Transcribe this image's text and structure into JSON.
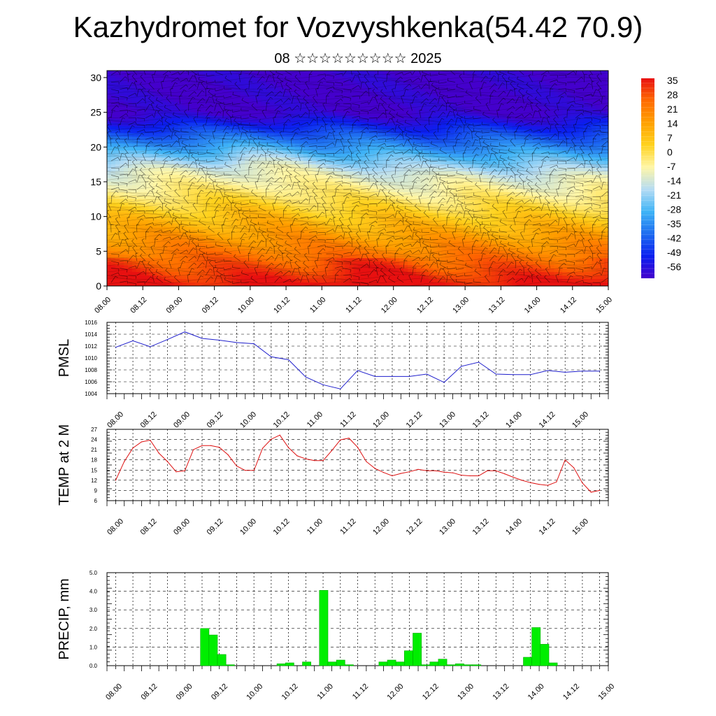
{
  "title": "Kazhydromet for Vozvyshkenka(54.42 70.9)",
  "subtitle": "08 ☆☆☆☆☆☆☆☆☆ 2025",
  "time_labels": [
    "08.00",
    "08.12",
    "09.00",
    "09.12",
    "10.00",
    "10.12",
    "11.00",
    "11.12",
    "12.00",
    "12.12",
    "13.00",
    "13.12",
    "14.00",
    "14.12",
    "15.00"
  ],
  "chart_data": [
    {
      "type": "heatmap",
      "name": "cross-section",
      "x": [
        "08.00",
        "08.12",
        "09.00",
        "09.12",
        "10.00",
        "10.12",
        "11.00",
        "11.12",
        "12.00",
        "12.12",
        "13.00",
        "13.12",
        "14.00",
        "14.12",
        "15.00"
      ],
      "y_ticks": [
        0,
        5,
        10,
        15,
        20,
        25,
        30
      ],
      "ylim": [
        0,
        31
      ],
      "colorbar_labels": [
        35,
        28,
        21,
        14,
        7,
        0,
        -7,
        -14,
        -21,
        -28,
        -35,
        -42,
        -49,
        -56
      ],
      "colorbar_range": [
        -63,
        42
      ],
      "freezing_level_approx": [
        16.2,
        16.6,
        16.8,
        16.8,
        17.5,
        17.3,
        16.5,
        16.2,
        16.0,
        15.5,
        15.8,
        15.6,
        15.6,
        15.6,
        15.8
      ],
      "colors": [
        "#4400cc",
        "#0a1ff0",
        "#1e6cf0",
        "#3fb4f6",
        "#b5dcf4",
        "#fff6a6",
        "#ffd21e",
        "#ffa000",
        "#ff6a00",
        "#e81010"
      ],
      "grid": false
    },
    {
      "type": "line",
      "name": "PMSL",
      "ylabel": "PMSL",
      "color": "#1f1fcc",
      "y_ticks": [
        1004,
        1006,
        1008,
        1010,
        1012,
        1014,
        1016
      ],
      "ylim": [
        1004,
        1016
      ],
      "xlim": [
        -0.25,
        14.25
      ],
      "x": [
        0,
        0.5,
        1,
        1.5,
        2,
        2.5,
        3,
        3.5,
        4,
        4.5,
        5,
        5.5,
        6,
        6.5,
        7,
        7.5,
        8,
        8.5,
        9,
        9.5,
        10,
        10.5,
        11,
        11.5,
        12,
        12.5,
        13,
        13.5,
        14
      ],
      "values": [
        1011.8,
        1012.9,
        1011.9,
        1013.1,
        1014.4,
        1013.3,
        1013.0,
        1012.6,
        1012.4,
        1010.2,
        1009.7,
        1006.8,
        1005.5,
        1004.8,
        1007.9,
        1006.9,
        1006.9,
        1006.9,
        1007.3,
        1005.9,
        1008.6,
        1009.3,
        1007.3,
        1007.2,
        1007.2,
        1007.9,
        1007.6,
        1007.8,
        1007.8
      ],
      "grid": true
    },
    {
      "type": "line",
      "name": "TEMP at 2 M",
      "ylabel": "TEMP at 2 M",
      "color": "#dd1111",
      "y_ticks": [
        6,
        9,
        12,
        15,
        18,
        21,
        24,
        27
      ],
      "ylim": [
        6,
        27
      ],
      "xlim": [
        -0.25,
        14.25
      ],
      "x": [
        0,
        0.25,
        0.5,
        0.75,
        1,
        1.25,
        1.5,
        1.75,
        2,
        2.25,
        2.5,
        2.75,
        3,
        3.25,
        3.5,
        3.75,
        4,
        4.25,
        4.5,
        4.75,
        5,
        5.25,
        5.5,
        5.75,
        6,
        6.25,
        6.5,
        6.75,
        7,
        7.25,
        7.5,
        7.75,
        8,
        8.25,
        8.5,
        8.75,
        9,
        9.25,
        9.5,
        9.75,
        10,
        10.25,
        10.5,
        10.75,
        11,
        11.25,
        11.5,
        11.75,
        12,
        12.25,
        12.5,
        12.75,
        13,
        13.25,
        13.5,
        13.75,
        14
      ],
      "values": [
        12,
        17.5,
        21.5,
        23.3,
        23.8,
        20,
        17.5,
        14.5,
        14.8,
        21,
        22.2,
        22.2,
        21.7,
        19.5,
        16.2,
        14.9,
        14.9,
        21.4,
        24.1,
        25.3,
        21.6,
        19.2,
        18.3,
        17.8,
        17.8,
        20.7,
        23.9,
        24.4,
        21.7,
        17.5,
        15.5,
        14.3,
        13.3,
        14,
        14.5,
        15.2,
        14.8,
        14.8,
        14.4,
        14.2,
        13.5,
        13.3,
        13.3,
        14.8,
        14.8,
        13.9,
        12.9,
        12,
        11.3,
        10.8,
        10.5,
        11.5,
        18,
        15.7,
        11.2,
        8.5,
        9
      ],
      "grid": true
    },
    {
      "type": "bar",
      "name": "PRECIP, mm",
      "ylabel": "PRECIP, mm",
      "color": "#00ee00",
      "y_ticks": [
        0.0,
        1.0,
        2.0,
        3.0,
        4.0,
        5.0
      ],
      "y_tick_labels": [
        "0.0",
        "1.0",
        "2.0",
        "3.0",
        "4.0",
        "5.0"
      ],
      "ylim": [
        0,
        5
      ],
      "xlim": [
        0,
        14.75
      ],
      "x": [
        2.75,
        3.0,
        3.25,
        3.5,
        5.0,
        5.25,
        5.75,
        6.25,
        6.5,
        6.75,
        7.0,
        8.0,
        8.25,
        8.5,
        8.75,
        9.0,
        9.25,
        9.5,
        9.75,
        10.0,
        10.25,
        10.5,
        10.75,
        12.25,
        12.5,
        12.75,
        13.0
      ],
      "values": [
        2.0,
        1.65,
        0.6,
        0.05,
        0.1,
        0.15,
        0.2,
        4.05,
        0.2,
        0.3,
        0.05,
        0.2,
        0.3,
        0.2,
        0.8,
        1.75,
        0.05,
        0.2,
        0.35,
        0.05,
        0.1,
        0.05,
        0.05,
        0.45,
        2.05,
        1.15,
        0.15
      ],
      "grid": true
    }
  ]
}
